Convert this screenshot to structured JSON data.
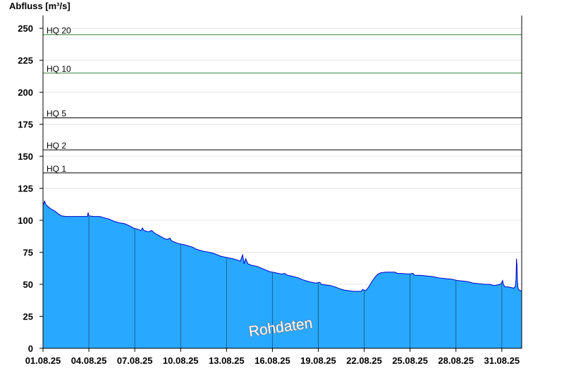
{
  "chart_data": {
    "type": "area",
    "ylabel": "Abfluss [m³/s]",
    "xlabel": "",
    "ylim": [
      0,
      260
    ],
    "yticks": [
      0,
      25,
      50,
      75,
      100,
      125,
      150,
      175,
      200,
      225,
      250
    ],
    "xlim": [
      "2025-08-01",
      "2025-08-31"
    ],
    "xtick_labels": [
      "01.08.25",
      "04.08.25",
      "07.08.25",
      "10.08.25",
      "13.08.25",
      "16.08.25",
      "19.08.25",
      "22.08.25",
      "25.08.25",
      "28.08.25",
      "31.08.25"
    ],
    "grid": "horizontal",
    "colors": {
      "fill": "#29a8ff",
      "line": "#0000c8",
      "hq_low": "#000000",
      "hq_high": "#2e7d32",
      "grid": "#e6e6e6",
      "day_lines": "#1f5f8f"
    },
    "thresholds": [
      {
        "label": "HQ 1",
        "value": 137,
        "color": "#000000"
      },
      {
        "label": "HQ 2",
        "value": 155,
        "color": "#000000"
      },
      {
        "label": "HQ 5",
        "value": 180,
        "color": "#000000"
      },
      {
        "label": "HQ 10",
        "value": 215,
        "color": "#2e7d32"
      },
      {
        "label": "HQ 20",
        "value": 245,
        "color": "#2e7d32"
      }
    ],
    "series": [
      {
        "points": [
          [
            0,
            112
          ],
          [
            0.05,
            113
          ],
          [
            0.1,
            115
          ],
          [
            0.2,
            112
          ],
          [
            0.3,
            111
          ],
          [
            0.5,
            109
          ],
          [
            0.8,
            107
          ],
          [
            1.0,
            105
          ],
          [
            1.2,
            103.5
          ],
          [
            1.5,
            103
          ],
          [
            2.0,
            103
          ],
          [
            2.5,
            103
          ],
          [
            2.9,
            103
          ],
          [
            2.95,
            106
          ],
          [
            3.0,
            103.5
          ],
          [
            3.3,
            103
          ],
          [
            3.7,
            103
          ],
          [
            4.0,
            102
          ],
          [
            4.3,
            101
          ],
          [
            4.7,
            99
          ],
          [
            5.0,
            98
          ],
          [
            5.3,
            97.5
          ],
          [
            5.6,
            96
          ],
          [
            5.9,
            94
          ],
          [
            6.2,
            93
          ],
          [
            6.4,
            92
          ],
          [
            6.5,
            94
          ],
          [
            6.6,
            92
          ],
          [
            6.9,
            91
          ],
          [
            7.1,
            92
          ],
          [
            7.3,
            90
          ],
          [
            7.6,
            88
          ],
          [
            7.9,
            86
          ],
          [
            8.1,
            85
          ],
          [
            8.3,
            86
          ],
          [
            8.4,
            84
          ],
          [
            8.8,
            82
          ],
          [
            9.2,
            81
          ],
          [
            9.5,
            80
          ],
          [
            9.8,
            79
          ],
          [
            10.0,
            77.5
          ],
          [
            10.4,
            76
          ],
          [
            10.9,
            75
          ],
          [
            11.2,
            74
          ],
          [
            11.6,
            72
          ],
          [
            12.0,
            71
          ],
          [
            12.4,
            70
          ],
          [
            12.7,
            69
          ],
          [
            12.9,
            68
          ],
          [
            13.05,
            73
          ],
          [
            13.15,
            66
          ],
          [
            13.25,
            70
          ],
          [
            13.4,
            66
          ],
          [
            13.6,
            65
          ],
          [
            14.0,
            64
          ],
          [
            14.4,
            62
          ],
          [
            14.8,
            60
          ],
          [
            15.2,
            59
          ],
          [
            15.6,
            58
          ],
          [
            15.8,
            58.5
          ],
          [
            16.0,
            57
          ],
          [
            16.4,
            56
          ],
          [
            16.7,
            55
          ],
          [
            17.0,
            53.5
          ],
          [
            17.4,
            52
          ],
          [
            17.8,
            51
          ],
          [
            18.1,
            51.5
          ],
          [
            18.2,
            50
          ],
          [
            18.5,
            49.5
          ],
          [
            18.8,
            49
          ],
          [
            19.1,
            48
          ],
          [
            19.4,
            46.5
          ],
          [
            19.7,
            45.5
          ],
          [
            20.0,
            45
          ],
          [
            20.3,
            44.5
          ],
          [
            20.6,
            44.5
          ],
          [
            20.8,
            44.5
          ],
          [
            20.9,
            46
          ],
          [
            21.1,
            45
          ],
          [
            21.3,
            48
          ],
          [
            21.5,
            52
          ],
          [
            21.7,
            55.5
          ],
          [
            21.9,
            58
          ],
          [
            22.1,
            59
          ],
          [
            22.4,
            59.5
          ],
          [
            22.7,
            59.5
          ],
          [
            23.0,
            59.5
          ],
          [
            23.2,
            58.5
          ],
          [
            23.5,
            58.5
          ],
          [
            23.9,
            58
          ],
          [
            24.2,
            58.5
          ],
          [
            24.3,
            57
          ],
          [
            24.7,
            57
          ],
          [
            25.1,
            56.5
          ],
          [
            25.5,
            56
          ],
          [
            25.9,
            55
          ],
          [
            26.3,
            54.5
          ],
          [
            26.7,
            54
          ],
          [
            27.1,
            53
          ],
          [
            27.5,
            52.5
          ],
          [
            27.8,
            52
          ],
          [
            28.1,
            51
          ],
          [
            28.5,
            50.5
          ],
          [
            28.9,
            50
          ],
          [
            29.2,
            50
          ],
          [
            29.5,
            49
          ],
          [
            29.7,
            49.5
          ],
          [
            29.9,
            50
          ],
          [
            30.0,
            51.5
          ],
          [
            30.05,
            53
          ],
          [
            30.1,
            50
          ],
          [
            30.2,
            48
          ],
          [
            30.4,
            48
          ],
          [
            30.6,
            47.5
          ],
          [
            30.8,
            47
          ],
          [
            30.9,
            49
          ],
          [
            30.93,
            55
          ],
          [
            30.96,
            70
          ],
          [
            30.99,
            65
          ],
          [
            31.02,
            52
          ],
          [
            31.06,
            47
          ],
          [
            31.1,
            46
          ],
          [
            31.2,
            45
          ],
          [
            31.3,
            45
          ]
        ]
      }
    ],
    "watermark": "Rohdaten"
  }
}
